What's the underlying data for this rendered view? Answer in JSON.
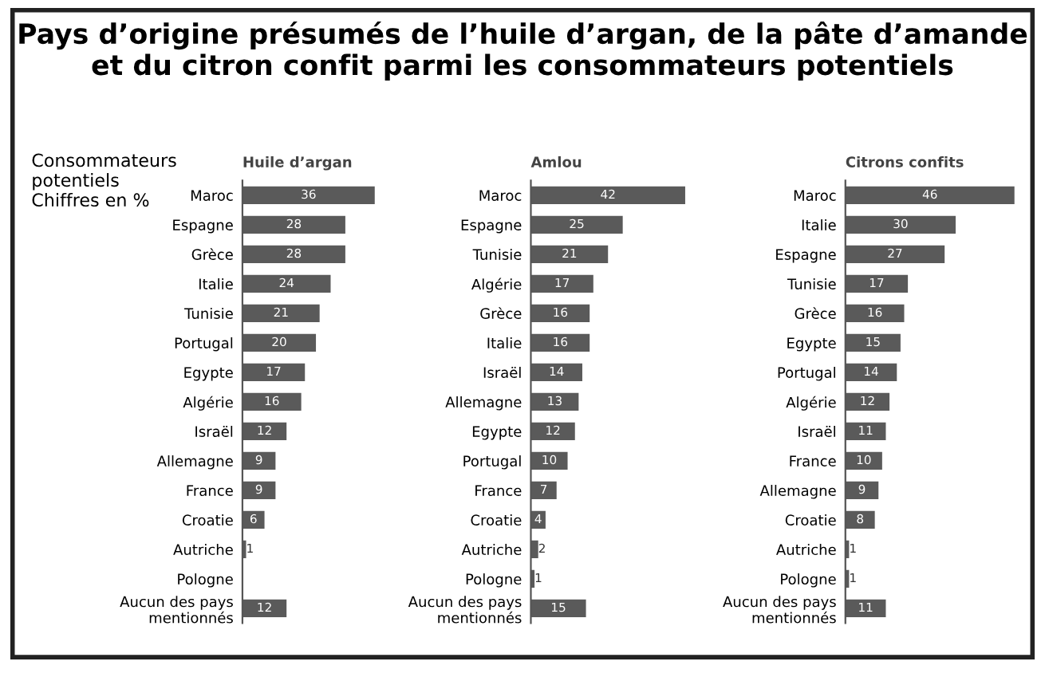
{
  "chart_data": [
    {
      "type": "bar",
      "orientation": "horizontal",
      "title": "Huile d’argan",
      "annotations": [
        "Pays d’origine présumés de l’huile d’argan, de la pâte d’amande et du citron confit parmi les consommateurs potentiels",
        "Consommateurs\npotentiels\nChiffres en %"
      ],
      "categories": [
        "Maroc",
        "Espagne",
        "Grèce",
        "Italie",
        "Tunisie",
        "Portugal",
        "Egypte",
        "Algérie",
        "Israël",
        "Allemagne",
        "France",
        "Croatie",
        "Autriche",
        "Pologne",
        "Aucun des pays\nmentionnés"
      ],
      "values": [
        36,
        28,
        28,
        24,
        21,
        20,
        17,
        16,
        12,
        9,
        9,
        6,
        1,
        null,
        12
      ],
      "color": "#5a5a5a",
      "data_labels": true
    },
    {
      "type": "bar",
      "orientation": "horizontal",
      "title": "Amlou",
      "categories": [
        "Maroc",
        "Espagne",
        "Tunisie",
        "Algérie",
        "Grèce",
        "Italie",
        "Israël",
        "Allemagne",
        "Egypte",
        "Portugal",
        "France",
        "Croatie",
        "Autriche",
        "Pologne",
        "Aucun des pays\nmentionnés"
      ],
      "values": [
        42,
        25,
        21,
        17,
        16,
        16,
        14,
        13,
        12,
        10,
        7,
        4,
        2,
        1,
        15
      ],
      "color": "#5a5a5a",
      "data_labels": true
    },
    {
      "type": "bar",
      "orientation": "horizontal",
      "title": "Citrons confits",
      "categories": [
        "Maroc",
        "Italie",
        "Espagne",
        "Tunisie",
        "Grèce",
        "Egypte",
        "Portugal",
        "Algérie",
        "Israël",
        "France",
        "Allemagne",
        "Croatie",
        "Autriche",
        "Pologne",
        "Aucun des pays\nmentionnés"
      ],
      "values": [
        46,
        30,
        27,
        17,
        16,
        15,
        14,
        12,
        11,
        10,
        9,
        8,
        1,
        1,
        11
      ],
      "color": "#5a5a5a",
      "data_labels": true
    }
  ]
}
